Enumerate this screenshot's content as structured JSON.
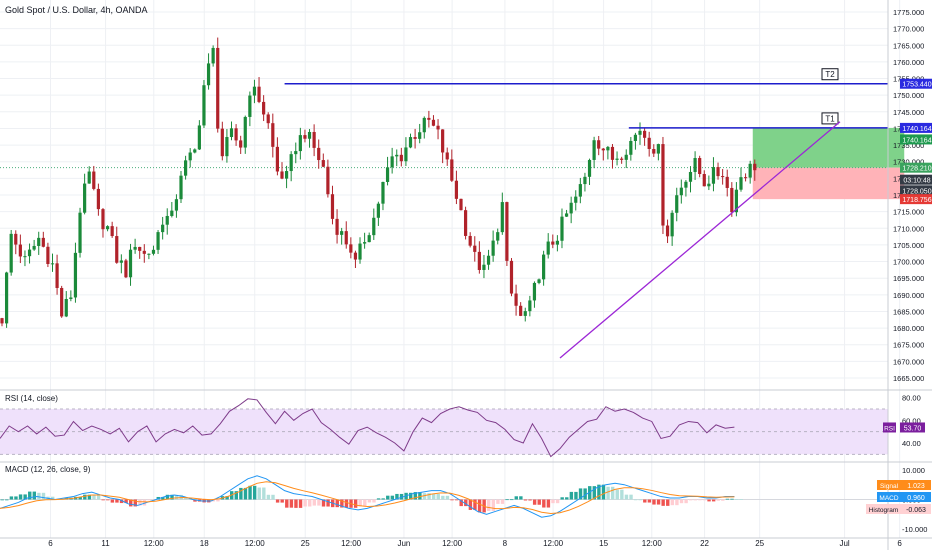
{
  "header": {
    "title": "Gold Spot / U.S. Dollar, 4h, OANDA"
  },
  "colors": {
    "up": "#26a69a",
    "up_dark": "#1b8a3a",
    "down": "#ef5350",
    "down_dark": "#b0222a",
    "blue_line": "#1d1dcc",
    "trend_line": "#9c27d6",
    "target_zone": "#7fd28a",
    "stop_zone": "#ffb3b8",
    "rsi_line": "#7e3b8a",
    "rsi_band": "#efe1fb",
    "macd_line": "#2196f3",
    "signal_line": "#ff8c1a",
    "grid": "#eef0f4"
  },
  "chart_data": [
    {
      "type": "candlestick",
      "panel": "price",
      "title": "Gold Spot / U.S. Dollar, 4h, OANDA",
      "ylim": [
        1662,
        1778
      ],
      "y_ticks": [
        1665,
        1670,
        1675,
        1680,
        1685,
        1690,
        1695,
        1700,
        1705,
        1710,
        1715,
        1720,
        1725,
        1730,
        1735,
        1740,
        1745,
        1750,
        1755,
        1760,
        1765,
        1770,
        1775
      ],
      "y_tick_labels": [
        "1665.000",
        "1670.000",
        "1675.000",
        "1680.000",
        "1685.000",
        "1690.000",
        "1695.000",
        "1700.000",
        "1705.000",
        "1710.000",
        "1715.000",
        "1720.000",
        "1725.000",
        "1730.000",
        "1735.000",
        "1740.000",
        "1745.000",
        "1750.000",
        "1755.000",
        "1760.000",
        "1765.000",
        "1770.000",
        "1775.000"
      ],
      "x_range": [
        0,
        196
      ],
      "x_labels": [
        {
          "x": 11,
          "label": "6"
        },
        {
          "x": 23,
          "label": "11"
        },
        {
          "x": 33.5,
          "label": "12:00"
        },
        {
          "x": 44.5,
          "label": "18"
        },
        {
          "x": 55.5,
          "label": "12:00"
        },
        {
          "x": 66.5,
          "label": "25"
        },
        {
          "x": 76.5,
          "label": "12:00"
        },
        {
          "x": 88,
          "label": "Jun"
        },
        {
          "x": 98.5,
          "label": "12:00"
        },
        {
          "x": 110,
          "label": "8"
        },
        {
          "x": 120.5,
          "label": "12:00"
        },
        {
          "x": 131.5,
          "label": "15"
        },
        {
          "x": 142,
          "label": "12:00"
        },
        {
          "x": 153.5,
          "label": "22"
        },
        {
          "x": 165.5,
          "label": "25"
        },
        {
          "x": 184,
          "label": "Jul"
        },
        {
          "x": 196,
          "label": "6"
        }
      ],
      "key_points": [
        {
          "x": 0,
          "price": 1683
        },
        {
          "x": 2,
          "price": 1708
        },
        {
          "x": 5,
          "price": 1700
        },
        {
          "x": 8,
          "price": 1707
        },
        {
          "x": 11,
          "price": 1699
        },
        {
          "x": 13,
          "price": 1684
        },
        {
          "x": 15,
          "price": 1690
        },
        {
          "x": 17,
          "price": 1716
        },
        {
          "x": 19,
          "price": 1726
        },
        {
          "x": 21,
          "price": 1714
        },
        {
          "x": 23,
          "price": 1710
        },
        {
          "x": 25,
          "price": 1701
        },
        {
          "x": 27,
          "price": 1697
        },
        {
          "x": 29,
          "price": 1706
        },
        {
          "x": 31,
          "price": 1702
        },
        {
          "x": 33,
          "price": 1704
        },
        {
          "x": 35,
          "price": 1713
        },
        {
          "x": 37,
          "price": 1713
        },
        {
          "x": 39,
          "price": 1727
        },
        {
          "x": 42,
          "price": 1733
        },
        {
          "x": 44,
          "price": 1753
        },
        {
          "x": 46,
          "price": 1763
        },
        {
          "x": 47,
          "price": 1742
        },
        {
          "x": 48,
          "price": 1732
        },
        {
          "x": 50,
          "price": 1738
        },
        {
          "x": 52,
          "price": 1735
        },
        {
          "x": 54,
          "price": 1752
        },
        {
          "x": 56,
          "price": 1749
        },
        {
          "x": 58,
          "price": 1741
        },
        {
          "x": 60,
          "price": 1727
        },
        {
          "x": 62,
          "price": 1725
        },
        {
          "x": 64,
          "price": 1735
        },
        {
          "x": 66,
          "price": 1739
        },
        {
          "x": 68,
          "price": 1734
        },
        {
          "x": 70,
          "price": 1728
        },
        {
          "x": 72,
          "price": 1713
        },
        {
          "x": 74,
          "price": 1708
        },
        {
          "x": 76,
          "price": 1704
        },
        {
          "x": 77,
          "price": 1699
        },
        {
          "x": 79,
          "price": 1707
        },
        {
          "x": 81,
          "price": 1713
        },
        {
          "x": 83,
          "price": 1723
        },
        {
          "x": 85,
          "price": 1731
        },
        {
          "x": 87,
          "price": 1732
        },
        {
          "x": 89,
          "price": 1737
        },
        {
          "x": 91,
          "price": 1740
        },
        {
          "x": 93,
          "price": 1742
        },
        {
          "x": 95,
          "price": 1738
        },
        {
          "x": 97,
          "price": 1729
        },
        {
          "x": 99,
          "price": 1720
        },
        {
          "x": 101,
          "price": 1710
        },
        {
          "x": 103,
          "price": 1701
        },
        {
          "x": 105,
          "price": 1697
        },
        {
          "x": 107,
          "price": 1705
        },
        {
          "x": 109,
          "price": 1717
        },
        {
          "x": 110,
          "price": 1698
        },
        {
          "x": 111,
          "price": 1690
        },
        {
          "x": 113,
          "price": 1683
        },
        {
          "x": 115,
          "price": 1686
        },
        {
          "x": 117,
          "price": 1697
        },
        {
          "x": 119,
          "price": 1704
        },
        {
          "x": 121,
          "price": 1708
        },
        {
          "x": 123,
          "price": 1714
        },
        {
          "x": 125,
          "price": 1719
        },
        {
          "x": 127,
          "price": 1725
        },
        {
          "x": 129,
          "price": 1738
        },
        {
          "x": 131,
          "price": 1734
        },
        {
          "x": 133,
          "price": 1731
        },
        {
          "x": 135,
          "price": 1733
        },
        {
          "x": 137,
          "price": 1736
        },
        {
          "x": 139,
          "price": 1740
        },
        {
          "x": 141,
          "price": 1736
        },
        {
          "x": 143,
          "price": 1733
        },
        {
          "x": 144,
          "price": 1713
        },
        {
          "x": 145,
          "price": 1709
        },
        {
          "x": 147,
          "price": 1720
        },
        {
          "x": 149,
          "price": 1726
        },
        {
          "x": 151,
          "price": 1729
        },
        {
          "x": 153,
          "price": 1724
        },
        {
          "x": 155,
          "price": 1726
        },
        {
          "x": 157,
          "price": 1727
        },
        {
          "x": 159,
          "price": 1717
        },
        {
          "x": 161,
          "price": 1726
        },
        {
          "x": 163,
          "price": 1728
        },
        {
          "x": 164,
          "price": 1729
        }
      ],
      "last_bar_x": 164,
      "annotations": {
        "t2": {
          "label": "T2",
          "price": 1753.44,
          "x_start": 62,
          "badge_x": 206
        },
        "t1": {
          "label": "T1",
          "price": 1740.164,
          "x_start": 137,
          "badge_x": 206
        },
        "trend_line": {
          "x1": 122,
          "price1": 1671,
          "x2": 183,
          "price2": 1742
        },
        "position": {
          "x_start": 164,
          "x_end": 197,
          "entry": 1728.21,
          "target": 1740.164,
          "stop": 1718.756
        }
      },
      "price_tags": [
        {
          "price": 1753.44,
          "label": "1753.440",
          "style": "blue"
        },
        {
          "price": 1740.164,
          "label": "1740.164",
          "style": "blue"
        },
        {
          "price": 1736.7,
          "label": "1740.164",
          "style": "green"
        },
        {
          "price": 1728.21,
          "label": "1728.210",
          "style": "green-light"
        },
        {
          "price": 1724.6,
          "label": "03:10:48",
          "style": "dark"
        },
        {
          "price": 1721.4,
          "label": "1728.050",
          "style": "dark"
        },
        {
          "price": 1718.756,
          "label": "1718.756",
          "style": "red"
        }
      ]
    },
    {
      "type": "line",
      "panel": "rsi",
      "title": "RSI (14, close)",
      "ylim": [
        25,
        85
      ],
      "y_tick_labels": [
        "80.00",
        "60.00",
        "40.00"
      ],
      "y_ticks": [
        80,
        60,
        40
      ],
      "band": [
        30,
        70
      ],
      "last_value_label": "RSI",
      "last_value": "53.70",
      "values_every_2_bars": [
        44,
        55,
        50,
        55,
        48,
        54,
        46,
        47,
        59,
        51,
        55,
        52,
        48,
        53,
        41,
        50,
        55,
        41,
        48,
        52,
        49,
        55,
        47,
        48,
        57,
        68,
        73,
        79,
        78,
        67,
        57,
        68,
        60,
        66,
        70,
        58,
        52,
        45,
        39,
        51,
        54,
        49,
        45,
        40,
        33,
        50,
        62,
        58,
        66,
        70,
        72,
        69,
        67,
        60,
        58,
        52,
        43,
        40,
        57,
        44,
        28,
        35,
        45,
        52,
        59,
        61,
        72,
        68,
        70,
        67,
        62,
        59,
        44,
        46,
        56,
        59,
        58,
        49,
        56,
        53,
        54
      ]
    },
    {
      "type": "bar+line",
      "panel": "macd",
      "title": "MACD (12, 26, close, 9)",
      "ylim": [
        -12,
        12
      ],
      "y_tick_labels": [
        "10.000",
        "0.000",
        "-10.000"
      ],
      "y_ticks": [
        10,
        0,
        -10
      ],
      "legend": [
        {
          "label": "Signal",
          "value": "1.023",
          "color": "#ff8c1a"
        },
        {
          "label": "MACD",
          "value": "0.960",
          "color": "#2196f3"
        },
        {
          "label": "Histogram",
          "value": "-0.063",
          "color": "#ffd1d3"
        }
      ],
      "macd_every_2_bars": [
        -3,
        -2,
        -1,
        0.5,
        1,
        0.5,
        0,
        0.5,
        1,
        2,
        2.5,
        1.5,
        0.5,
        0,
        -1.5,
        -2,
        -1,
        0,
        1,
        1.5,
        1,
        0,
        -0.5,
        -0.5,
        1,
        3,
        5,
        7,
        8,
        7,
        5,
        3,
        2,
        1.5,
        1,
        0,
        -1,
        -2,
        -3,
        -3.5,
        -3,
        -2,
        -1,
        0,
        1,
        2,
        2.5,
        3,
        3,
        2,
        0,
        -2,
        -4,
        -5,
        -4,
        -3,
        -2,
        -3,
        -4.5,
        -6,
        -5.5,
        -4,
        -2,
        0,
        2,
        4,
        5,
        5.5,
        5,
        4,
        3,
        2,
        1,
        0.5,
        0.5,
        1,
        1,
        0.5,
        0.5,
        1,
        1
      ]
    }
  ],
  "axis_tags": {
    "rsi": "53.70",
    "macd_signal": "1.023",
    "macd": "0.960",
    "histogram": "-0.063"
  }
}
